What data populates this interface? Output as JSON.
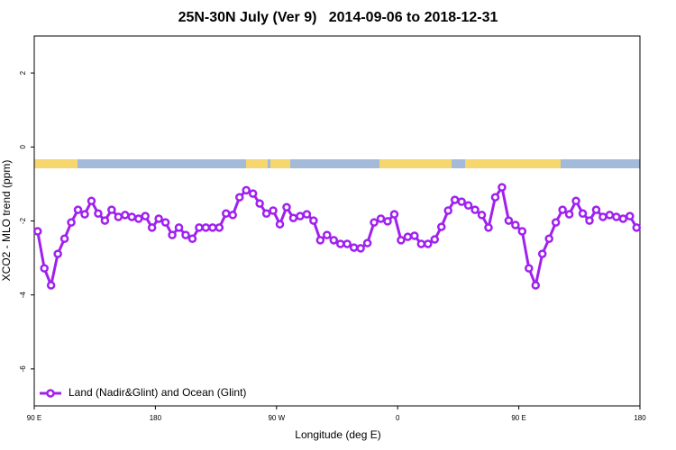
{
  "chart_data": {
    "type": "line",
    "title": "25N-30N July (Ver 9)   2014-09-06 to 2018-12-31",
    "xlabel": "Longitude (deg E)",
    "ylabel": "XCO2 - MLO trend (ppm)",
    "xlim": [
      90,
      540
    ],
    "ylim": [
      -7,
      3
    ],
    "xticks": [
      {
        "value": 90,
        "label": "90 E"
      },
      {
        "value": 180,
        "label": "180"
      },
      {
        "value": 270,
        "label": "90 W"
      },
      {
        "value": 360,
        "label": "0"
      },
      {
        "value": 450,
        "label": "90 E"
      },
      {
        "value": 540,
        "label": "180"
      }
    ],
    "yticks": [
      -6,
      -4,
      -2,
      0,
      2
    ],
    "legend": "bottom-left",
    "x": [
      92.5,
      97.5,
      102.5,
      107.5,
      112.5,
      117.5,
      122.5,
      127.5,
      132.5,
      137.5,
      142.5,
      147.5,
      152.5,
      157.5,
      162.5,
      167.5,
      172.5,
      177.5,
      182.5,
      187.5,
      192.5,
      197.5,
      202.5,
      207.5,
      212.5,
      217.5,
      222.5,
      227.5,
      232.5,
      237.5,
      242.5,
      247.5,
      252.5,
      257.5,
      262.5,
      267.5,
      272.5,
      277.5,
      282.5,
      287.5,
      292.5,
      297.5,
      302.5,
      307.5,
      312.5,
      317.5,
      322.5,
      327.5,
      332.5,
      337.5,
      342.5,
      347.5,
      352.5,
      357.5,
      362.5,
      367.5,
      372.5,
      377.5,
      382.5,
      387.5,
      392.5,
      397.5,
      402.5,
      407.5,
      412.5,
      417.5,
      422.5,
      427.5,
      432.5,
      437.5,
      442.5,
      447.5,
      452.5,
      457.5,
      462.5,
      467.5,
      472.5,
      477.5,
      482.5,
      487.5,
      492.5,
      497.5,
      502.5,
      507.5,
      512.5,
      517.5,
      522.5,
      527.5,
      532.5,
      537.5
    ],
    "series": [
      {
        "name": "Land (Nadir&Glint) and Ocean (Glint)",
        "color": "#a020f0",
        "values": [
          -2.28,
          -3.28,
          -3.74,
          -2.89,
          -2.48,
          -2.04,
          -1.7,
          -1.82,
          -1.46,
          -1.8,
          -1.99,
          -1.7,
          -1.89,
          -1.84,
          -1.89,
          -1.94,
          -1.87,
          -2.18,
          -1.94,
          -2.04,
          -2.38,
          -2.18,
          -2.38,
          -2.48,
          -2.18,
          -2.18,
          -2.18,
          -2.18,
          -1.8,
          -1.84,
          -1.36,
          -1.17,
          -1.26,
          -1.53,
          -1.8,
          -1.72,
          -2.09,
          -1.63,
          -1.92,
          -1.87,
          -1.82,
          -1.99,
          -2.52,
          -2.38,
          -2.52,
          -2.62,
          -2.62,
          -2.72,
          -2.74,
          -2.6,
          -2.04,
          -1.94,
          -2.01,
          -1.82,
          -2.52,
          -2.43,
          -2.4,
          -2.62,
          -2.62,
          -2.5,
          -2.16,
          -1.72,
          -1.43,
          -1.48,
          -1.58,
          -1.7,
          -1.84,
          -2.18,
          -1.36,
          -1.09,
          -1.99,
          -2.11,
          -2.28,
          -3.28,
          -3.74,
          -2.89,
          -2.48,
          -2.04,
          -1.7,
          -1.82,
          -1.46,
          -1.8,
          -1.99,
          -1.7,
          -1.89,
          -1.84,
          -1.89,
          -1.94,
          -1.87,
          -2.18
        ]
      }
    ]
  }
}
